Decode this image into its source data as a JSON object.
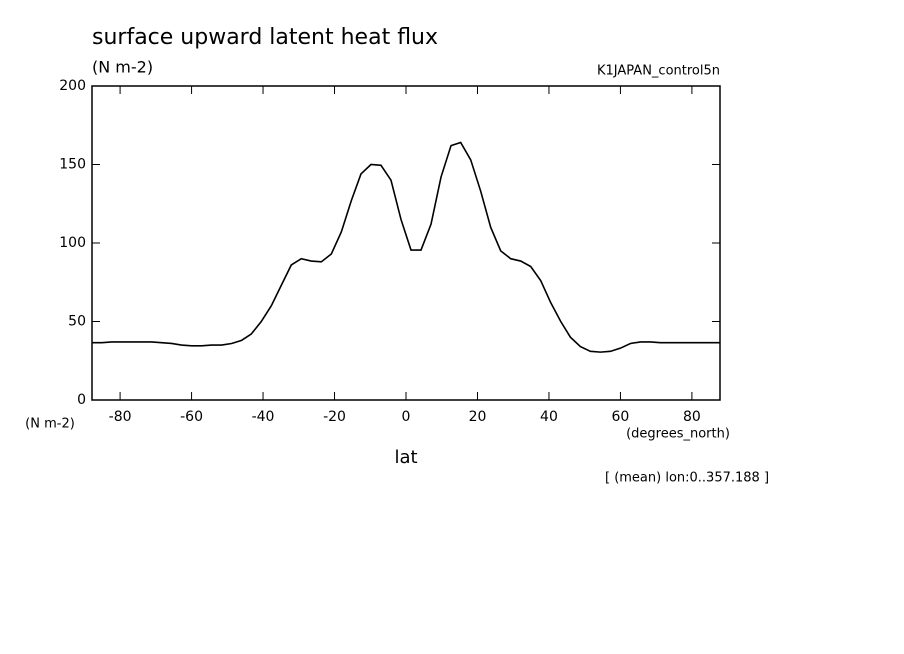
{
  "chart_data": {
    "type": "line",
    "title": "surface upward latent heat flux",
    "subtitle": "(N m-2)",
    "dataset_label": "K1JAPAN_control5n",
    "y_label": "(N m-2)",
    "x_units": "(degrees_north)",
    "x_label": "lat",
    "annotation": "[ (mean) lon:0..357.188 ]",
    "color": "#000000",
    "x": [
      -87.86,
      -85.1,
      -82.3,
      -79.5,
      -76.7,
      -73.9,
      -71.2,
      -68.4,
      -65.6,
      -62.8,
      -60.0,
      -57.2,
      -54.4,
      -51.6,
      -48.8,
      -46.0,
      -43.3,
      -40.5,
      -37.7,
      -34.9,
      -32.1,
      -29.3,
      -26.5,
      -23.7,
      -20.9,
      -18.1,
      -15.3,
      -12.6,
      -9.8,
      -7.0,
      -4.2,
      -1.4,
      1.4,
      4.2,
      7.0,
      9.8,
      12.6,
      15.3,
      18.1,
      20.9,
      23.7,
      26.5,
      29.3,
      32.1,
      34.9,
      37.7,
      40.5,
      43.3,
      46.0,
      48.8,
      51.6,
      54.4,
      57.2,
      60.0,
      62.8,
      65.6,
      68.4,
      71.2,
      73.9,
      76.7,
      79.5,
      82.3,
      85.1,
      87.86
    ],
    "values": [
      36.5,
      36.5,
      37,
      37,
      37,
      37,
      37,
      36.5,
      36,
      35,
      34.5,
      34.5,
      35,
      35,
      36,
      38,
      42,
      50,
      60,
      73,
      86,
      90,
      88.5,
      88,
      93,
      107,
      127,
      144,
      150,
      149.5,
      140,
      115,
      95.5,
      95.5,
      112,
      142,
      162,
      164,
      153,
      133,
      110,
      95,
      90,
      88.5,
      85,
      76,
      62,
      50,
      40,
      34,
      31,
      30.5,
      31,
      33,
      36,
      37,
      37,
      36.5,
      36.5,
      36.5,
      36.5,
      36.5,
      36.5,
      36.5
    ],
    "xlim": [
      -87.86,
      87.86
    ],
    "xticks": [
      -80,
      -60,
      -40,
      -20,
      0,
      20,
      40,
      60,
      80
    ],
    "ylim": [
      0,
      200
    ],
    "yticks": [
      0,
      50,
      100,
      150,
      200
    ]
  }
}
